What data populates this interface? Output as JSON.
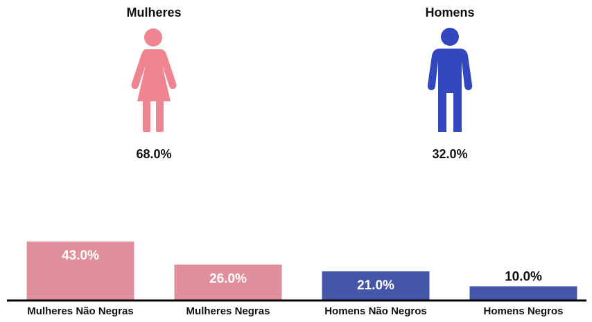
{
  "colors": {
    "women": "#f08592",
    "men": "#3347be",
    "bar_women": "#e0909c",
    "bar_men": "#4555a8",
    "axis": "#000000"
  },
  "genders": {
    "women": {
      "title": "Mulheres",
      "pct": "68.0%",
      "icon": "female-figure-icon"
    },
    "men": {
      "title": "Homens",
      "pct": "32.0%",
      "icon": "male-figure-icon"
    }
  },
  "chart_data": {
    "type": "bar",
    "categories": [
      "Mulheres Não Negras",
      "Mulheres Negras",
      "Homens Não Negros",
      "Homens Negros"
    ],
    "values": [
      43.0,
      26.0,
      21.0,
      10.0
    ],
    "labels": [
      "43.0%",
      "26.0%",
      "21.0%",
      "10.0%"
    ],
    "ylim": [
      0,
      45
    ],
    "grid": false,
    "xlabel": "",
    "ylabel": ""
  }
}
